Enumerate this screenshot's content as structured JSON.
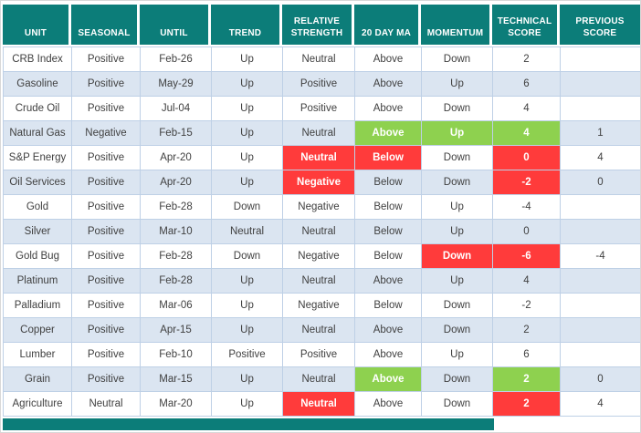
{
  "colors": {
    "header_teal": "#0c7d79",
    "band_blue": "#dbe5f1",
    "highlight_green": "#8ed14f",
    "highlight_red": "#ff3b3b",
    "border": "#bed0e6",
    "text": "#404040"
  },
  "chart_data": {
    "type": "table",
    "columns": [
      "UNIT",
      "SEASONAL",
      "UNTIL",
      "TREND",
      "RELATIVE STRENGTH",
      "20 DAY MA",
      "MOMENTUM",
      "TECHNICAL SCORE",
      "PREVIOUS SCORE"
    ],
    "rows": [
      [
        {
          "t": "CRB Index"
        },
        {
          "t": "Positive"
        },
        {
          "t": "Feb-26"
        },
        {
          "t": "Up"
        },
        {
          "t": "Neutral"
        },
        {
          "t": "Above"
        },
        {
          "t": "Down"
        },
        {
          "t": "2"
        },
        {
          "t": ""
        }
      ],
      [
        {
          "t": "Gasoline"
        },
        {
          "t": "Positive"
        },
        {
          "t": "May-29"
        },
        {
          "t": "Up"
        },
        {
          "t": "Positive"
        },
        {
          "t": "Above"
        },
        {
          "t": "Up"
        },
        {
          "t": "6"
        },
        {
          "t": ""
        }
      ],
      [
        {
          "t": "Crude Oil"
        },
        {
          "t": "Positive"
        },
        {
          "t": "Jul-04"
        },
        {
          "t": "Up"
        },
        {
          "t": "Positive"
        },
        {
          "t": "Above"
        },
        {
          "t": "Down"
        },
        {
          "t": "4"
        },
        {
          "t": ""
        }
      ],
      [
        {
          "t": "Natural Gas"
        },
        {
          "t": "Negative"
        },
        {
          "t": "Feb-15"
        },
        {
          "t": "Up"
        },
        {
          "t": "Neutral"
        },
        {
          "t": "Above",
          "h": "green"
        },
        {
          "t": "Up",
          "h": "green"
        },
        {
          "t": "4",
          "h": "green"
        },
        {
          "t": "1"
        }
      ],
      [
        {
          "t": "S&P Energy"
        },
        {
          "t": "Positive"
        },
        {
          "t": "Apr-20"
        },
        {
          "t": "Up"
        },
        {
          "t": "Neutral",
          "h": "red"
        },
        {
          "t": "Below",
          "h": "red"
        },
        {
          "t": "Down"
        },
        {
          "t": "0",
          "h": "red"
        },
        {
          "t": "4"
        }
      ],
      [
        {
          "t": "Oil Services"
        },
        {
          "t": "Positive"
        },
        {
          "t": "Apr-20"
        },
        {
          "t": "Up"
        },
        {
          "t": "Negative",
          "h": "red"
        },
        {
          "t": "Below"
        },
        {
          "t": "Down"
        },
        {
          "t": "-2",
          "h": "red"
        },
        {
          "t": "0"
        }
      ],
      [
        {
          "t": "Gold"
        },
        {
          "t": "Positive"
        },
        {
          "t": "Feb-28"
        },
        {
          "t": "Down"
        },
        {
          "t": "Negative"
        },
        {
          "t": "Below"
        },
        {
          "t": "Up"
        },
        {
          "t": "-4"
        },
        {
          "t": ""
        }
      ],
      [
        {
          "t": "Silver"
        },
        {
          "t": "Positive"
        },
        {
          "t": "Mar-10"
        },
        {
          "t": "Neutral"
        },
        {
          "t": "Neutral"
        },
        {
          "t": "Below"
        },
        {
          "t": "Up"
        },
        {
          "t": "0"
        },
        {
          "t": ""
        }
      ],
      [
        {
          "t": "Gold Bug"
        },
        {
          "t": "Positive"
        },
        {
          "t": "Feb-28"
        },
        {
          "t": "Down"
        },
        {
          "t": "Negative"
        },
        {
          "t": "Below"
        },
        {
          "t": "Down",
          "h": "red"
        },
        {
          "t": "-6",
          "h": "red"
        },
        {
          "t": "-4"
        }
      ],
      [
        {
          "t": "Platinum"
        },
        {
          "t": "Positive"
        },
        {
          "t": "Feb-28"
        },
        {
          "t": "Up"
        },
        {
          "t": "Neutral"
        },
        {
          "t": "Above"
        },
        {
          "t": "Up"
        },
        {
          "t": "4"
        },
        {
          "t": ""
        }
      ],
      [
        {
          "t": "Palladium"
        },
        {
          "t": "Positive"
        },
        {
          "t": "Mar-06"
        },
        {
          "t": "Up"
        },
        {
          "t": "Negative"
        },
        {
          "t": "Below"
        },
        {
          "t": "Down"
        },
        {
          "t": "-2"
        },
        {
          "t": ""
        }
      ],
      [
        {
          "t": "Copper"
        },
        {
          "t": "Positive"
        },
        {
          "t": "Apr-15"
        },
        {
          "t": "Up"
        },
        {
          "t": "Neutral"
        },
        {
          "t": "Above"
        },
        {
          "t": "Down"
        },
        {
          "t": "2"
        },
        {
          "t": ""
        }
      ],
      [
        {
          "t": "Lumber"
        },
        {
          "t": "Positive"
        },
        {
          "t": "Feb-10"
        },
        {
          "t": "Positive"
        },
        {
          "t": "Positive"
        },
        {
          "t": "Above"
        },
        {
          "t": "Up"
        },
        {
          "t": "6"
        },
        {
          "t": ""
        }
      ],
      [
        {
          "t": "Grain"
        },
        {
          "t": "Positive"
        },
        {
          "t": "Mar-15"
        },
        {
          "t": "Up"
        },
        {
          "t": "Neutral"
        },
        {
          "t": "Above",
          "h": "green"
        },
        {
          "t": "Down"
        },
        {
          "t": "2",
          "h": "green"
        },
        {
          "t": "0"
        }
      ],
      [
        {
          "t": "Agriculture"
        },
        {
          "t": "Neutral"
        },
        {
          "t": "Mar-20"
        },
        {
          "t": "Up"
        },
        {
          "t": "Neutral",
          "h": "red"
        },
        {
          "t": "Above"
        },
        {
          "t": "Down"
        },
        {
          "t": "2",
          "h": "red"
        },
        {
          "t": "4"
        }
      ]
    ]
  }
}
